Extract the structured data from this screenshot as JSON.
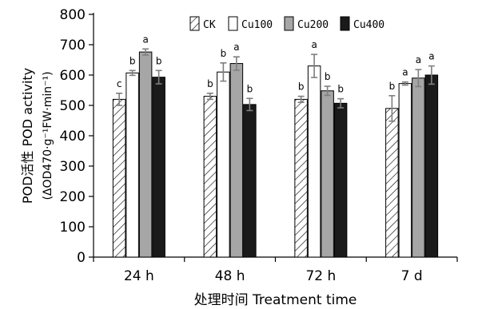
{
  "chart_data": {
    "type": "bar",
    "categories": [
      "24 h",
      "48 h",
      "72 h",
      "7 d"
    ],
    "xlabel": "处理时间 Treatment time",
    "ylabel_cn": "POD活性 POD activity",
    "ylabel_unit": "(ΔOD470·g⁻¹FW·min⁻¹)",
    "ylim": [
      0,
      800
    ],
    "yticks": [
      0,
      100,
      200,
      300,
      400,
      500,
      600,
      700,
      800
    ],
    "legend_position": "top",
    "series": [
      {
        "name": "CK",
        "values": [
          520,
          530,
          520,
          490
        ],
        "errors": [
          20,
          10,
          10,
          42
        ],
        "labels": [
          "c",
          "b",
          "b",
          "b"
        ],
        "fill": "hatch"
      },
      {
        "name": "Cu100",
        "values": [
          607,
          610,
          630,
          572
        ],
        "errors": [
          8,
          30,
          38,
          5
        ],
        "labels": [
          "b",
          "b",
          "a",
          "a"
        ],
        "fill": "#ffffff"
      },
      {
        "name": "Cu200",
        "values": [
          676,
          638,
          548,
          590
        ],
        "errors": [
          10,
          22,
          15,
          28
        ],
        "labels": [
          "a",
          "a",
          "b",
          "a"
        ],
        "fill": "#a6a6a6"
      },
      {
        "name": "Cu400",
        "values": [
          593,
          503,
          507,
          600
        ],
        "errors": [
          22,
          20,
          15,
          30
        ],
        "labels": [
          "b",
          "b",
          "b",
          "a"
        ],
        "fill": "#1a1a1a"
      }
    ]
  }
}
